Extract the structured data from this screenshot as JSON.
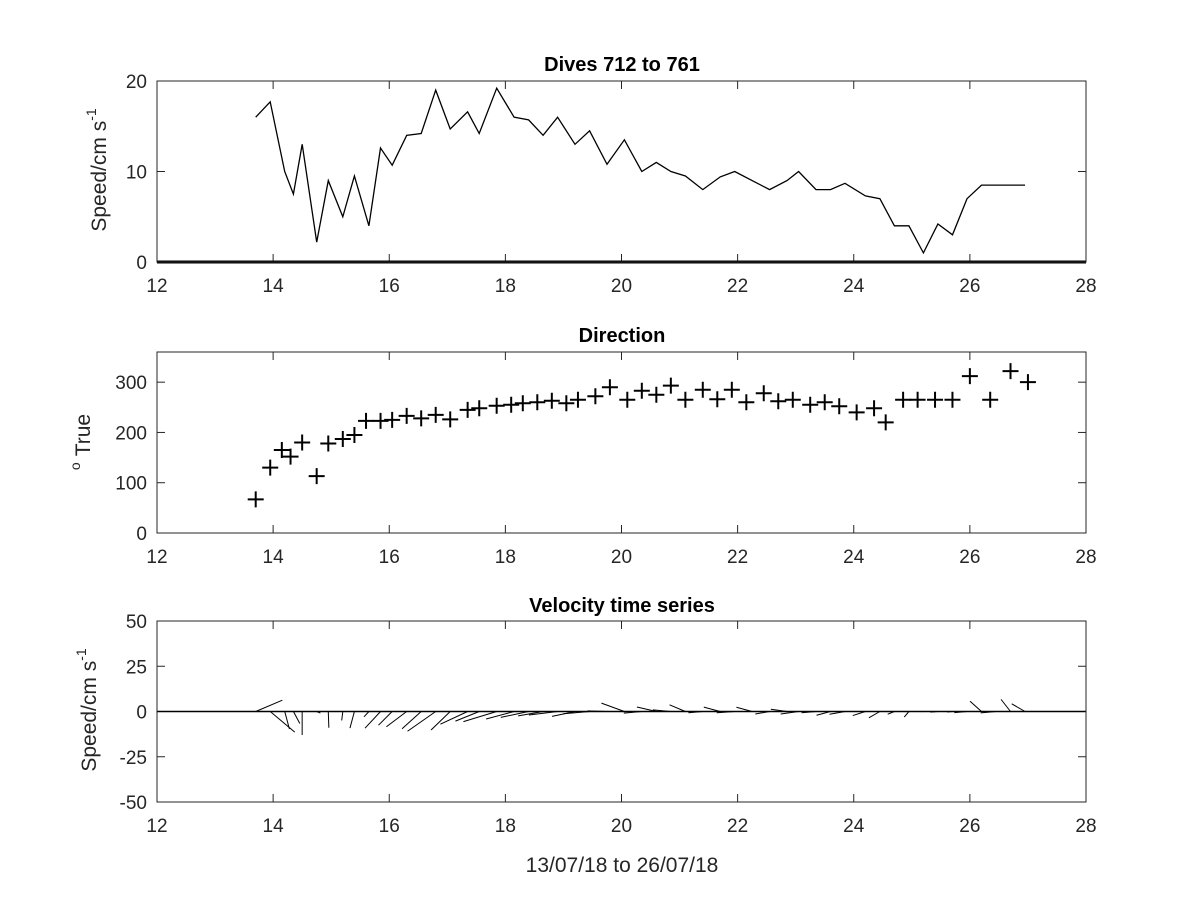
{
  "chart_data": [
    {
      "type": "line",
      "title": "Dives 712 to 761",
      "ylabel": "Speed/cm s",
      "ylabel_sup": "-1",
      "xlim": [
        12,
        28
      ],
      "ylim": [
        0,
        20
      ],
      "xticks": [
        "12",
        "14",
        "16",
        "18",
        "20",
        "22",
        "24",
        "26",
        "28"
      ],
      "yticks": [
        "0",
        "10",
        "20"
      ],
      "series": [
        {
          "x": [
            13.7,
            13.95,
            14.2,
            14.35,
            14.5,
            14.75,
            14.95,
            15.2,
            15.4,
            15.65,
            15.85,
            16.05,
            16.3,
            16.55,
            16.8,
            17.05,
            17.35,
            17.55,
            17.85,
            18.15,
            18.4,
            18.65,
            18.9,
            19.2,
            19.45,
            19.75,
            20.05,
            20.35,
            20.6,
            20.85,
            21.1,
            21.4,
            21.7,
            21.95,
            22.25,
            22.55,
            22.85,
            23.05,
            23.35,
            23.6,
            23.85,
            24.2,
            24.45,
            24.7,
            24.95,
            25.2,
            25.45,
            25.7,
            25.95,
            26.2,
            26.45,
            26.7,
            26.95
          ],
          "values": [
            16,
            17.7,
            10,
            7.5,
            13,
            2.2,
            9,
            5,
            9.5,
            4,
            12.6,
            10.7,
            14,
            14.2,
            19,
            14.7,
            16.6,
            14.2,
            19.2,
            16,
            15.7,
            14,
            16,
            13,
            14.5,
            10.8,
            13.5,
            10,
            11,
            10,
            9.5,
            8,
            9.4,
            10,
            9,
            8,
            9,
            10,
            8,
            8,
            8.7,
            7.3,
            7,
            4,
            4,
            1,
            4.2,
            3,
            7,
            8.5,
            8.5,
            8.5,
            8.5
          ]
        }
      ]
    },
    {
      "type": "scatter",
      "title": "Direction",
      "ylabel": "True",
      "ylabel_sup": "o",
      "xlim": [
        12,
        28
      ],
      "ylim": [
        0,
        360
      ],
      "xticks": [
        "12",
        "14",
        "16",
        "18",
        "20",
        "22",
        "24",
        "26",
        "28"
      ],
      "yticks": [
        "0",
        "100",
        "200",
        "300"
      ],
      "marker": "+",
      "series": [
        {
          "x": [
            13.7,
            13.95,
            14.15,
            14.3,
            14.5,
            14.75,
            14.95,
            15.2,
            15.4,
            15.6,
            15.85,
            16.05,
            16.3,
            16.55,
            16.8,
            17.05,
            17.35,
            17.55,
            17.85,
            18.1,
            18.3,
            18.55,
            18.8,
            19.05,
            19.25,
            19.55,
            19.8,
            20.1,
            20.35,
            20.6,
            20.85,
            21.1,
            21.4,
            21.65,
            21.9,
            22.15,
            22.45,
            22.7,
            22.95,
            23.25,
            23.5,
            23.75,
            24.05,
            24.35,
            24.55,
            24.85,
            25.1,
            25.4,
            25.7,
            26.0,
            26.35,
            26.7,
            27.0
          ],
          "values": [
            67,
            130,
            165,
            152,
            180,
            113,
            178,
            187,
            195,
            223,
            223,
            225,
            233,
            228,
            235,
            226,
            245,
            248,
            253,
            255,
            258,
            260,
            263,
            258,
            265,
            272,
            290,
            265,
            283,
            275,
            293,
            265,
            285,
            266,
            285,
            260,
            278,
            262,
            265,
            255,
            260,
            252,
            240,
            248,
            220,
            265,
            265,
            265,
            265,
            312,
            265,
            322,
            300
          ]
        }
      ]
    },
    {
      "type": "line",
      "title": "Velocity time series",
      "subtype": "feather (stick plot)",
      "ylabel": "Speed/cm s",
      "ylabel_sup": "-1",
      "xlabel": "13/07/18 to 26/07/18",
      "xlim": [
        12,
        28
      ],
      "ylim": [
        -50,
        50
      ],
      "xticks": [
        "12",
        "14",
        "16",
        "18",
        "20",
        "22",
        "24",
        "26",
        "28"
      ],
      "yticks": [
        "50",
        "25",
        "0",
        "-25",
        "-50"
      ],
      "sticks": {
        "x": [
          13.7,
          13.95,
          14.2,
          14.35,
          14.5,
          14.75,
          14.95,
          15.2,
          15.4,
          15.65,
          15.85,
          16.05,
          16.3,
          16.55,
          16.8,
          17.05,
          17.35,
          17.55,
          17.85,
          18.15,
          18.4,
          18.65,
          18.9,
          19.2,
          19.45,
          19.75,
          20.05,
          20.35,
          20.6,
          20.85,
          21.1,
          21.4,
          21.7,
          21.95,
          22.25,
          22.55,
          22.85,
          23.05,
          23.35,
          23.6,
          23.85,
          24.2,
          24.45,
          24.7,
          24.95,
          25.2,
          25.45,
          25.7,
          25.95,
          26.2,
          26.45,
          26.7,
          26.95
        ],
        "speed": [
          16,
          17.7,
          10,
          7.5,
          13,
          2.2,
          9,
          5,
          9.5,
          4,
          12.6,
          10.7,
          14,
          14.2,
          19,
          14.7,
          16.6,
          14.2,
          19.2,
          16,
          15.7,
          14,
          16,
          13,
          14.5,
          10.8,
          13.5,
          10,
          11,
          10,
          9.5,
          8,
          9.4,
          10,
          9,
          8,
          9,
          10,
          8,
          8,
          8.7,
          7.3,
          7,
          4,
          4,
          1,
          4.2,
          3,
          7,
          8.5,
          8.5,
          8.5,
          8.5
        ],
        "direction_deg": [
          67,
          130,
          165,
          152,
          180,
          113,
          178,
          187,
          195,
          223,
          223,
          225,
          233,
          228,
          235,
          226,
          245,
          248,
          253,
          255,
          258,
          260,
          263,
          258,
          265,
          272,
          290,
          265,
          283,
          275,
          293,
          265,
          285,
          266,
          285,
          260,
          278,
          262,
          265,
          255,
          260,
          252,
          240,
          248,
          220,
          265,
          265,
          265,
          265,
          312,
          265,
          322,
          300
        ]
      }
    }
  ]
}
